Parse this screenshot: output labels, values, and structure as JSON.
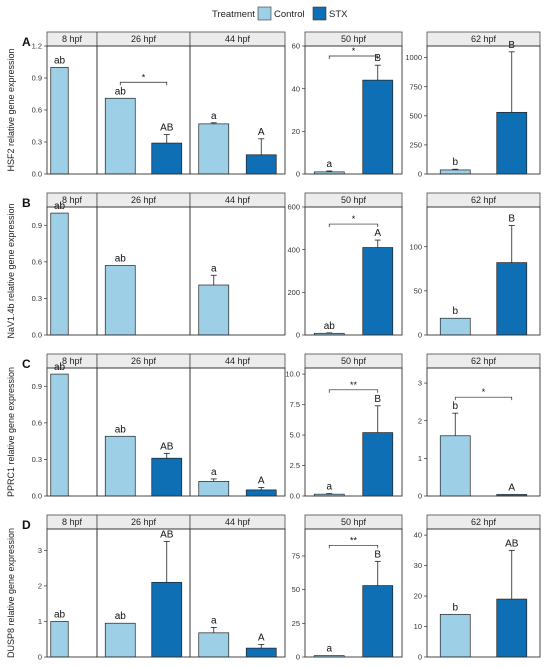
{
  "legend": {
    "title": "Treatment",
    "entries": [
      {
        "label": "Control",
        "color": "#9dcfe7"
      },
      {
        "label": "STX",
        "color": "#0e6fb5"
      }
    ]
  },
  "chart_data": [
    {
      "type": "bar",
      "row_letter": "A",
      "ylabel": "HSF2 relative gene expression",
      "panels": [
        {
          "title": "8 hpf",
          "ylim": [
            0,
            1.2
          ],
          "yticks": [
            "0.0",
            "0.3",
            "0.6",
            "0.9",
            "1.2"
          ],
          "tickvals": [
            0,
            0.3,
            0.6,
            0.9,
            1.2
          ],
          "shared": true,
          "bars": [
            {
              "group": "Control",
              "value": 1.0,
              "err": 0,
              "label": "ab"
            }
          ],
          "sig": ""
        },
        {
          "title": "26 hpf",
          "shared": true,
          "bars": [
            {
              "group": "Control",
              "value": 0.71,
              "err": 0,
              "label": "ab"
            },
            {
              "group": "STX",
              "value": 0.29,
              "err": 0.08,
              "label": "AB"
            }
          ],
          "sig": "*"
        },
        {
          "title": "44 hpf",
          "shared": true,
          "bars": [
            {
              "group": "Control",
              "value": 0.47,
              "err": 0.01,
              "label": "a"
            },
            {
              "group": "STX",
              "value": 0.18,
              "err": 0.15,
              "label": "A"
            }
          ],
          "sig": ""
        },
        {
          "title": "50 hpf",
          "ylim": [
            0,
            60
          ],
          "yticks": [
            "0",
            "20",
            "40",
            "60"
          ],
          "tickvals": [
            0,
            20,
            40,
            60
          ],
          "bars": [
            {
              "group": "Control",
              "value": 1,
              "err": 0.4,
              "label": "a"
            },
            {
              "group": "STX",
              "value": 44,
              "err": 7,
              "label": "B"
            }
          ],
          "sig": "*"
        },
        {
          "title": "62 hpf",
          "ylim": [
            0,
            1100
          ],
          "yticks": [
            "0",
            "250",
            "500",
            "750",
            "1000"
          ],
          "tickvals": [
            0,
            250,
            500,
            750,
            1000
          ],
          "bars": [
            {
              "group": "Control",
              "value": 35,
              "err": 6,
              "label": "b"
            },
            {
              "group": "STX",
              "value": 530,
              "err": 520,
              "label": "B"
            }
          ],
          "sig": ""
        }
      ]
    },
    {
      "type": "bar",
      "row_letter": "B",
      "ylabel": "NaV1.4b relative gene expression",
      "panels": [
        {
          "title": "8 hpf",
          "ylim": [
            0,
            1.05
          ],
          "yticks": [
            "0.0",
            "0.3",
            "0.6",
            "0.9"
          ],
          "tickvals": [
            0,
            0.3,
            0.6,
            0.9
          ],
          "shared": true,
          "bars": [
            {
              "group": "Control",
              "value": 1.0,
              "err": 0,
              "label": "ab"
            }
          ],
          "sig": ""
        },
        {
          "title": "26 hpf",
          "shared": true,
          "bars": [
            {
              "group": "Control",
              "value": 0.57,
              "err": 0,
              "label": "ab"
            }
          ],
          "sig": ""
        },
        {
          "title": "44 hpf",
          "shared": true,
          "bars": [
            {
              "group": "Control",
              "value": 0.41,
              "err": 0.08,
              "label": "a"
            }
          ],
          "sig": ""
        },
        {
          "title": "50 hpf",
          "ylim": [
            0,
            600
          ],
          "yticks": [
            "0",
            "200",
            "400",
            "600"
          ],
          "tickvals": [
            0,
            200,
            400,
            600
          ],
          "bars": [
            {
              "group": "Control",
              "value": 8,
              "err": 2,
              "label": "ab"
            },
            {
              "group": "STX",
              "value": 410,
              "err": 35,
              "label": "A"
            }
          ],
          "sig": "*"
        },
        {
          "title": "62 hpf",
          "ylim": [
            0,
            145
          ],
          "yticks": [
            "0",
            "50",
            "100"
          ],
          "tickvals": [
            0,
            50,
            100
          ],
          "bars": [
            {
              "group": "Control",
              "value": 19,
              "err": 0,
              "label": "b"
            },
            {
              "group": "STX",
              "value": 82,
              "err": 42,
              "label": "B"
            }
          ],
          "sig": ""
        }
      ]
    },
    {
      "type": "bar",
      "row_letter": "C",
      "ylabel": "PPRC1 relative gene expression",
      "panels": [
        {
          "title": "8 hpf",
          "ylim": [
            0,
            1.05
          ],
          "yticks": [
            "0.0",
            "0.3",
            "0.6",
            "0.9"
          ],
          "tickvals": [
            0,
            0.3,
            0.6,
            0.9
          ],
          "shared": true,
          "bars": [
            {
              "group": "Control",
              "value": 1.0,
              "err": 0,
              "label": "ab"
            }
          ],
          "sig": ""
        },
        {
          "title": "26 hpf",
          "shared": true,
          "bars": [
            {
              "group": "Control",
              "value": 0.49,
              "err": 0,
              "label": "ab"
            },
            {
              "group": "STX",
              "value": 0.31,
              "err": 0.04,
              "label": "AB"
            }
          ],
          "sig": ""
        },
        {
          "title": "44 hpf",
          "shared": true,
          "bars": [
            {
              "group": "Control",
              "value": 0.12,
              "err": 0.02,
              "label": "a"
            },
            {
              "group": "STX",
              "value": 0.05,
              "err": 0.02,
              "label": "A"
            }
          ],
          "sig": ""
        },
        {
          "title": "50 hpf",
          "ylim": [
            0,
            10.5
          ],
          "yticks": [
            "0.0",
            "2.5",
            "5.0",
            "7.5",
            "10.0"
          ],
          "tickvals": [
            0,
            2.5,
            5,
            7.5,
            10
          ],
          "bars": [
            {
              "group": "Control",
              "value": 0.15,
              "err": 0.05,
              "label": "a"
            },
            {
              "group": "STX",
              "value": 5.2,
              "err": 2.2,
              "label": "B"
            }
          ],
          "sig": "**"
        },
        {
          "title": "62 hpf",
          "ylim": [
            0,
            3.4
          ],
          "yticks": [
            "0",
            "1",
            "2",
            "3"
          ],
          "tickvals": [
            0,
            1,
            2,
            3
          ],
          "bars": [
            {
              "group": "Control",
              "value": 1.6,
              "err": 0.6,
              "label": "b"
            },
            {
              "group": "STX",
              "value": 0.04,
              "err": 0,
              "label": "A"
            }
          ],
          "sig": "*"
        }
      ]
    },
    {
      "type": "bar",
      "row_letter": "D",
      "ylabel": "DUSP8 relative gene expression",
      "panels": [
        {
          "title": "8 hpf",
          "ylim": [
            0,
            3.6
          ],
          "yticks": [
            "0",
            "1",
            "2",
            "3"
          ],
          "tickvals": [
            0,
            1,
            2,
            3
          ],
          "shared": true,
          "bars": [
            {
              "group": "Control",
              "value": 1.0,
              "err": 0,
              "label": "ab"
            }
          ],
          "sig": ""
        },
        {
          "title": "26 hpf",
          "shared": true,
          "bars": [
            {
              "group": "Control",
              "value": 0.95,
              "err": 0,
              "label": "ab"
            },
            {
              "group": "STX",
              "value": 2.1,
              "err": 1.15,
              "label": "AB"
            }
          ],
          "sig": ""
        },
        {
          "title": "44 hpf",
          "shared": true,
          "bars": [
            {
              "group": "Control",
              "value": 0.68,
              "err": 0.15,
              "label": "a"
            },
            {
              "group": "STX",
              "value": 0.25,
              "err": 0.1,
              "label": "A"
            }
          ],
          "sig": ""
        },
        {
          "title": "50 hpf",
          "ylim": [
            0,
            95
          ],
          "yticks": [
            "0",
            "25",
            "50",
            "75"
          ],
          "tickvals": [
            0,
            25,
            50,
            75
          ],
          "bars": [
            {
              "group": "Control",
              "value": 1,
              "err": 0,
              "label": "a"
            },
            {
              "group": "STX",
              "value": 53,
              "err": 18,
              "label": "B"
            }
          ],
          "sig": "**"
        },
        {
          "title": "62 hpf",
          "ylim": [
            0,
            42
          ],
          "yticks": [
            "0",
            "10",
            "20",
            "30",
            "40"
          ],
          "tickvals": [
            0,
            10,
            20,
            30,
            40
          ],
          "bars": [
            {
              "group": "Control",
              "value": 14,
              "err": 0,
              "label": "b"
            },
            {
              "group": "STX",
              "value": 19,
              "err": 16,
              "label": "AB"
            }
          ],
          "sig": ""
        }
      ]
    }
  ]
}
